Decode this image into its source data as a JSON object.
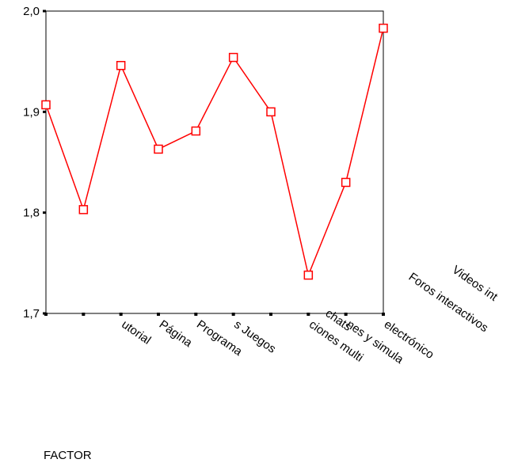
{
  "chart_data": {
    "type": "line",
    "x_label": "FACTOR",
    "categories": [
      null,
      null,
      "utorial",
      "Página",
      "Programa",
      "s Juegos",
      null,
      "ciones multi",
      "nes y simula",
      "electrónico"
    ],
    "annotations": [
      "chats",
      "Foros interactivos",
      "Videos int"
    ],
    "series": [
      {
        "name": "FACTOR",
        "color": "#ff0000",
        "values": [
          1.907,
          1.803,
          1.946,
          1.863,
          1.881,
          1.954,
          1.9,
          1.738,
          1.83,
          1.983
        ]
      }
    ],
    "ylim": [
      1.7,
      2.0
    ],
    "yticks": [
      {
        "value": 1.7,
        "label": "1,7"
      },
      {
        "value": 1.8,
        "label": "1,8"
      },
      {
        "value": 1.9,
        "label": "1,9"
      },
      {
        "value": 2.0,
        "label": "2,0"
      }
    ],
    "grid": false
  }
}
